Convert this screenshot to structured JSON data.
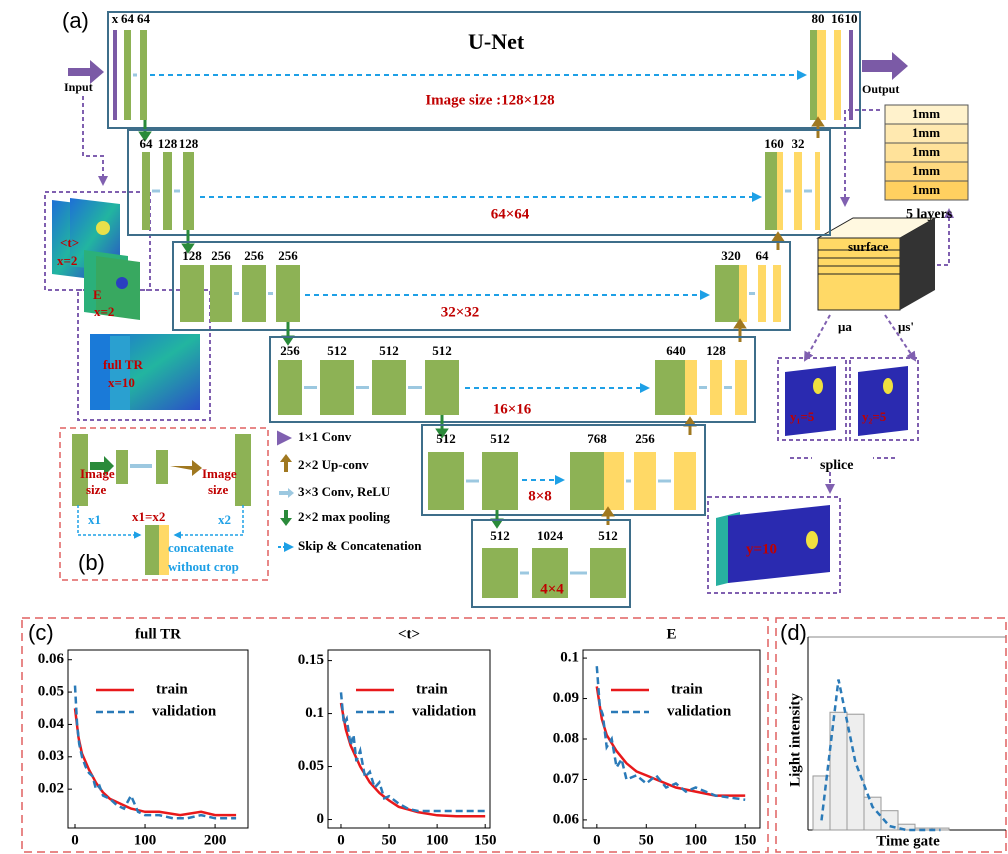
{
  "panel_labels": [
    "(a)",
    "(b)",
    "(c)",
    "(d)"
  ],
  "unet": {
    "title": "U-Net",
    "input": "Input",
    "output": "Output",
    "levels": [
      {
        "left": [
          "x",
          "64",
          "64"
        ],
        "right": [
          "80",
          "16",
          "10"
        ],
        "size": "Image size :128×128"
      },
      {
        "left": [
          "64",
          "128",
          "128"
        ],
        "right": [
          "160",
          "32"
        ],
        "size": "64×64"
      },
      {
        "left": [
          "128",
          "256",
          "256",
          "256"
        ],
        "right": [
          "320",
          "64"
        ],
        "size": "32×32"
      },
      {
        "left": [
          "256",
          "512",
          "512",
          "512"
        ],
        "right": [
          "640",
          "128"
        ],
        "size": "16×16"
      },
      {
        "left": [
          "512",
          "512"
        ],
        "right": [
          "768",
          "256"
        ],
        "size": "8×8"
      },
      {
        "left": [
          "512",
          "1024",
          "512"
        ],
        "right": [],
        "size": "4×4"
      }
    ]
  },
  "legend": [
    "1×1 Conv",
    "2×2 Up-conv",
    "3×3 Conv, ReLU",
    "2×2 max pooling",
    "Skip & Concatenation"
  ],
  "inset": {
    "left": [
      "Image",
      "size",
      "x1"
    ],
    "right": [
      "Image",
      "size",
      "x2"
    ],
    "equal": "x1=x2",
    "concat": [
      "concatenate",
      "without crop"
    ]
  },
  "inputs": [
    {
      "name": "<t>",
      "count": "x=2"
    },
    {
      "name": "E",
      "count": "x=2"
    },
    {
      "name": "full TR",
      "count": "x=10"
    }
  ],
  "layers": {
    "thickness": [
      "1mm",
      "1mm",
      "1mm",
      "1mm",
      "1mm"
    ],
    "caption": "5 layers",
    "surface": "surface",
    "mua": "μa",
    "mus": "μs'",
    "y1": "y₁=5",
    "y2": "y₂=5",
    "splice": "splice",
    "y": "y=10"
  },
  "chart_data": [
    {
      "type": "line",
      "title": "full TR",
      "xlim": [
        -10,
        247
      ],
      "xticks": [
        0,
        100,
        200
      ],
      "ylim": [
        0.008,
        0.063
      ],
      "yticks": [
        0.02,
        0.03,
        0.04,
        0.05,
        0.06
      ],
      "series": [
        {
          "name": "train",
          "color": "#e8191b",
          "x": [
            0,
            5,
            10,
            20,
            30,
            40,
            50,
            60,
            80,
            100,
            120,
            150,
            180,
            200,
            230
          ],
          "values": [
            0.045,
            0.036,
            0.031,
            0.026,
            0.022,
            0.019,
            0.017,
            0.016,
            0.014,
            0.013,
            0.013,
            0.012,
            0.013,
            0.012,
            0.012
          ]
        },
        {
          "name": "validation",
          "color": "#2a7ab8",
          "x": [
            0,
            3,
            6,
            10,
            15,
            20,
            25,
            30,
            35,
            40,
            50,
            60,
            70,
            80,
            90,
            100,
            120,
            140,
            160,
            180,
            200,
            230
          ],
          "values": [
            0.052,
            0.04,
            0.034,
            0.03,
            0.027,
            0.025,
            0.024,
            0.02,
            0.021,
            0.018,
            0.017,
            0.015,
            0.014,
            0.018,
            0.013,
            0.012,
            0.012,
            0.011,
            0.011,
            0.012,
            0.011,
            0.011
          ]
        }
      ]
    },
    {
      "type": "line",
      "title": "<t>",
      "xlim": [
        -13.5,
        155
      ],
      "xticks": [
        0,
        50,
        100,
        150
      ],
      "ylim": [
        -0.008,
        0.16
      ],
      "yticks": [
        0,
        0.05,
        0.1,
        0.15
      ],
      "series": [
        {
          "name": "train",
          "color": "#e8191b",
          "x": [
            0,
            5,
            10,
            20,
            30,
            40,
            50,
            60,
            80,
            100,
            120,
            150
          ],
          "values": [
            0.11,
            0.085,
            0.07,
            0.05,
            0.035,
            0.025,
            0.018,
            0.012,
            0.007,
            0.004,
            0.003,
            0.003
          ]
        },
        {
          "name": "validation",
          "color": "#2a7ab8",
          "x": [
            0,
            3,
            6,
            10,
            13,
            16,
            20,
            25,
            30,
            35,
            40,
            45,
            50,
            60,
            70,
            80,
            100,
            120,
            150
          ],
          "values": [
            0.12,
            0.09,
            0.095,
            0.07,
            0.08,
            0.055,
            0.065,
            0.04,
            0.045,
            0.03,
            0.035,
            0.02,
            0.022,
            0.015,
            0.01,
            0.008,
            0.008,
            0.008,
            0.008
          ]
        }
      ]
    },
    {
      "type": "line",
      "title": "E",
      "xlim": [
        -14,
        165
      ],
      "xticks": [
        0,
        50,
        100,
        150
      ],
      "ylim": [
        0.058,
        0.102
      ],
      "yticks": [
        0.06,
        0.07,
        0.08,
        0.09,
        0.1
      ],
      "series": [
        {
          "name": "train",
          "color": "#e8191b",
          "x": [
            0,
            5,
            10,
            20,
            30,
            40,
            50,
            60,
            80,
            100,
            120,
            150
          ],
          "values": [
            0.093,
            0.085,
            0.081,
            0.077,
            0.074,
            0.072,
            0.071,
            0.07,
            0.068,
            0.067,
            0.066,
            0.066
          ]
        },
        {
          "name": "validation",
          "color": "#2a7ab8",
          "x": [
            0,
            3,
            6,
            10,
            15,
            20,
            25,
            30,
            40,
            50,
            60,
            70,
            80,
            90,
            100,
            120,
            150
          ],
          "values": [
            0.098,
            0.088,
            0.086,
            0.078,
            0.08,
            0.073,
            0.075,
            0.07,
            0.071,
            0.069,
            0.071,
            0.068,
            0.069,
            0.067,
            0.068,
            0.066,
            0.065
          ]
        }
      ]
    },
    {
      "type": "bar",
      "xlabel": "Time gate",
      "ylabel": "Light intensity",
      "ylim": [
        0,
        1
      ],
      "color": "#eeeeee",
      "values": [
        0.28,
        0.61,
        0.6,
        0.17,
        0.1,
        0.03,
        0.01,
        0.01
      ],
      "fit": {
        "color": "#2a7ab8",
        "values": [
          0.05,
          0.78,
          0.35,
          0.12,
          0.02,
          0,
          0,
          0
        ]
      }
    }
  ]
}
